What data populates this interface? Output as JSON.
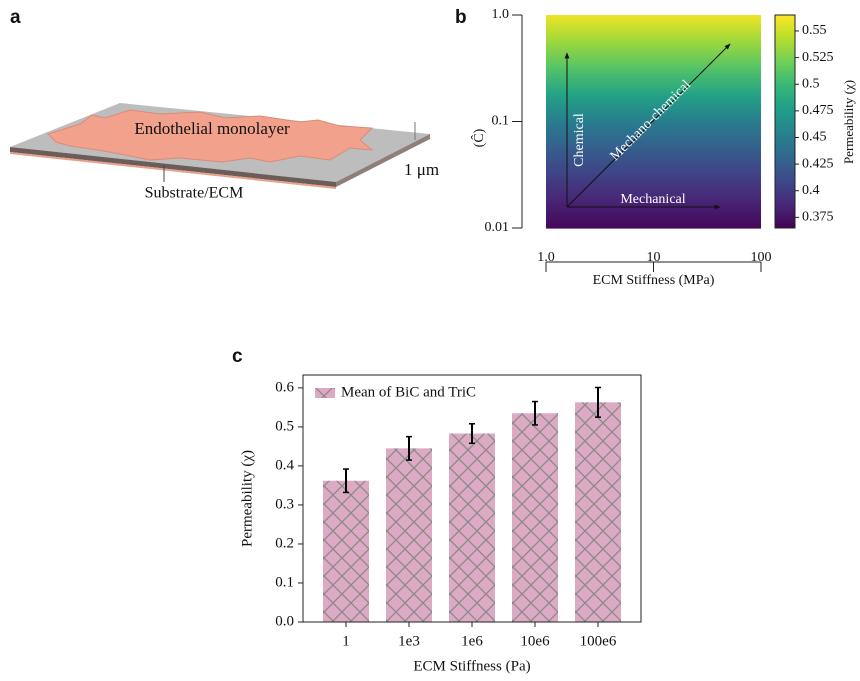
{
  "diagram": {
    "label": "a",
    "monolayer": "Endothelial monolayer",
    "substrate": "Substrate/ECM",
    "scale": "1 μm"
  },
  "chart_data": [
    {
      "type": "heatmap",
      "label": "b",
      "xlabel": "ECM Stiffness (MPa)",
      "ylabel": "(Ĉ)",
      "xscale": "log",
      "yscale": "log",
      "xlim": [
        1,
        100
      ],
      "ylim": [
        0.01,
        1
      ],
      "xticks": [
        {
          "value": 1,
          "label": "1.0"
        },
        10,
        100
      ],
      "yticks": [
        0.01,
        0.1,
        {
          "value": 1,
          "label": "1.0"
        }
      ],
      "y": [
        0.01,
        0.0178,
        0.0316,
        0.0562,
        0.1,
        0.178,
        0.316,
        0.562,
        1
      ],
      "values": [
        0.368,
        0.385,
        0.405,
        0.425,
        0.45,
        0.48,
        0.51,
        0.535,
        0.56
      ],
      "colormap": "viridis",
      "colorbar": {
        "label": "Permeability (χ)",
        "lim": [
          0.365,
          0.565
        ],
        "ticks": [
          0.375,
          0.4,
          0.425,
          0.45,
          0.475,
          0.5,
          0.525,
          0.55
        ]
      },
      "annotations": [
        "Chemical",
        "Mechano-chemical",
        "Mechanical"
      ]
    },
    {
      "type": "bar",
      "label": "c",
      "xlabel": "ECM Stiffness (Pa)",
      "ylabel": "Permeability (χ)",
      "categories": [
        "1",
        "1e3",
        "1e6",
        "10e6",
        "100e6"
      ],
      "series": [
        {
          "name": "Mean of BiC and TriC",
          "color": "#dcaac4",
          "hatch": "#8a8a8a",
          "values": [
            0.362,
            0.445,
            0.483,
            0.535,
            0.563
          ],
          "errors": [
            0.03,
            0.03,
            0.025,
            0.03,
            0.038
          ]
        }
      ],
      "ylim": [
        0,
        0.633
      ],
      "yticks": [
        {
          "value": 0,
          "label": "0.0"
        },
        0.1,
        0.2,
        0.3,
        0.4,
        0.5,
        0.6
      ],
      "legend": "upper left"
    }
  ]
}
